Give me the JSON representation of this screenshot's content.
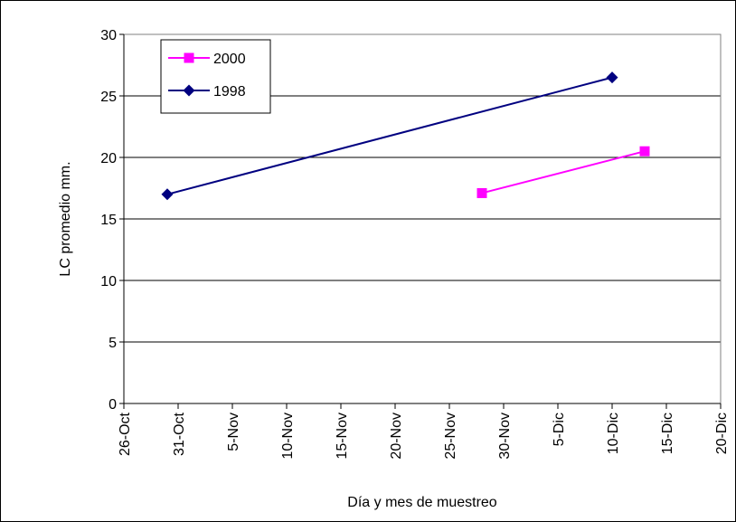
{
  "chart_data": {
    "type": "line",
    "title": "",
    "xlabel": "Día y mes de muestreo",
    "ylabel": "LC promedio mm.",
    "ylim": [
      0,
      30
    ],
    "yticks": [
      0,
      5,
      10,
      15,
      20,
      25,
      30
    ],
    "xlim": [
      "26-Oct",
      "20-Dic"
    ],
    "xticks": [
      "26-Oct",
      "31-Oct",
      "5-Nov",
      "10-Nov",
      "15-Nov",
      "20-Nov",
      "25-Nov",
      "30-Nov",
      "5-Dic",
      "10-Dic",
      "15-Dic",
      "20-Dic"
    ],
    "grid": "horizontal",
    "legend_position": "top-left",
    "series": [
      {
        "name": "2000",
        "color": "#ff00ff",
        "marker": "square",
        "points": [
          {
            "x": "28-Nov",
            "y": 17.1
          },
          {
            "x": "13-Dic",
            "y": 20.5
          }
        ]
      },
      {
        "name": "1998",
        "color": "#000080",
        "marker": "diamond",
        "points": [
          {
            "x": "30-Oct",
            "y": 17.0
          },
          {
            "x": "10-Dic",
            "y": 26.5
          }
        ]
      }
    ]
  }
}
